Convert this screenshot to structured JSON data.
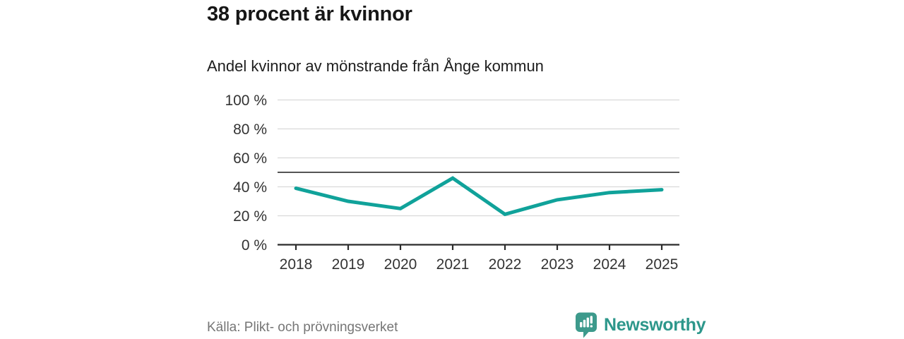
{
  "page": {
    "title": "38 procent är kvinnor",
    "subtitle": "Andel kvinnor av mönstrande från Ånge kommun",
    "source": "Källa: Plikt- och prövningsverket",
    "brand_name": "Newsworthy"
  },
  "colors": {
    "line": "#10a29a",
    "reference_line": "#3d3d3d",
    "axis": "#2b2b2b",
    "gridline": "#d9d9d9",
    "axis_text": "#333333",
    "title_text": "#161616",
    "source_text": "#767676",
    "brand_teal": "#2d978b",
    "logo_fill": "#3d9a8c"
  },
  "chart_data": {
    "type": "line",
    "title": "38 procent är kvinnor",
    "subtitle": "Andel kvinnor av mönstrande från Ånge kommun",
    "x": [
      2018,
      2019,
      2020,
      2021,
      2022,
      2023,
      2024,
      2025
    ],
    "xtick_labels": [
      "2018",
      "2019",
      "2020",
      "2021",
      "2022",
      "2023",
      "2024",
      "2025"
    ],
    "series": [
      {
        "name": "Andel kvinnor av mönstrande",
        "unit": "%",
        "values": [
          39,
          30,
          25,
          46,
          21,
          31,
          36,
          38
        ]
      }
    ],
    "ylim": [
      0,
      100
    ],
    "yticks": [
      0,
      20,
      40,
      60,
      80,
      100
    ],
    "ytick_labels": [
      "0 %",
      "20 %",
      "40 %",
      "60 %",
      "80 %",
      "100 %"
    ],
    "reference_line": 50,
    "grid": "horizontal",
    "legend": "none"
  }
}
